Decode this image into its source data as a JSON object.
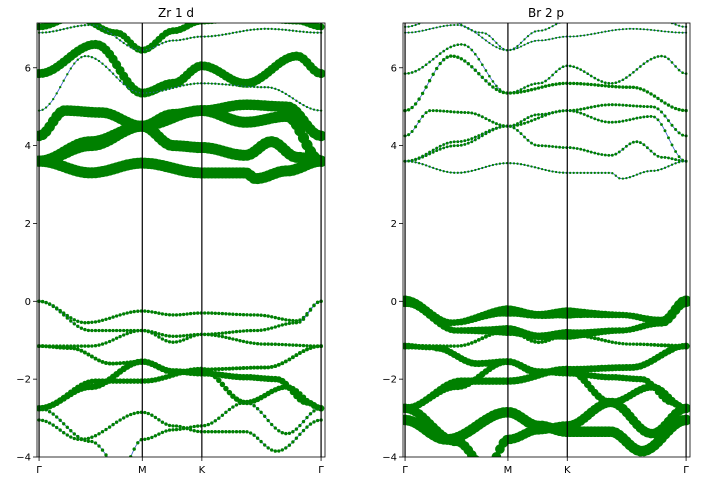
{
  "chart_data": [
    {
      "type": "scatter",
      "title": "Zr 1 d",
      "xlabel": "",
      "ylabel": "",
      "x_ticks": [
        "Γ",
        "M",
        "K",
        "Γ"
      ],
      "x_tick_positions": [
        0,
        1,
        1.577,
        2.732
      ],
      "xlim": [
        -0.02,
        2.77
      ],
      "ylim": [
        -4,
        7.15
      ],
      "y_ticks": [
        -4,
        -2,
        0,
        2,
        4,
        6
      ],
      "y_tick_labels": [
        "−4",
        "−2",
        "0",
        "2",
        "4",
        "6"
      ],
      "band_color": "#3a5fcd",
      "marker_color": "#008000",
      "bands_at_high_symmetry_points": {
        "gamma": [
          -3.05,
          -2.75,
          -2.75,
          -1.15,
          -1.15,
          0.0,
          0.0,
          3.6,
          3.6,
          3.6,
          4.25,
          4.9,
          5.85,
          6.9,
          7.05
        ],
        "M": [
          -3.55,
          -2.85,
          -2.05,
          -1.55,
          -0.75,
          -0.25,
          3.55,
          4.5,
          4.5,
          5.35,
          6.45
        ],
        "K": [
          -3.35,
          -3.2,
          -1.85,
          -1.85,
          -1.75,
          -0.3,
          3.3,
          3.95,
          4.9,
          6.05
        ]
      },
      "series_weight_scale": "marker size proportional to projected weight"
    },
    {
      "type": "scatter",
      "title": "Br 2 p",
      "xlabel": "",
      "ylabel": "",
      "x_ticks": [
        "Γ",
        "M",
        "K",
        "Γ"
      ],
      "x_tick_positions": [
        0,
        1,
        1.577,
        2.732
      ],
      "xlim": [
        -0.02,
        2.77
      ],
      "ylim": [
        -4,
        7.15
      ],
      "y_ticks": [
        -4,
        -2,
        0,
        2,
        4,
        6
      ],
      "y_tick_labels": [
        "−4",
        "−2",
        "0",
        "2",
        "4",
        "6"
      ],
      "band_color": "#3a5fcd",
      "marker_color": "#008000",
      "series_weight_scale": "marker size proportional to projected weight"
    }
  ]
}
